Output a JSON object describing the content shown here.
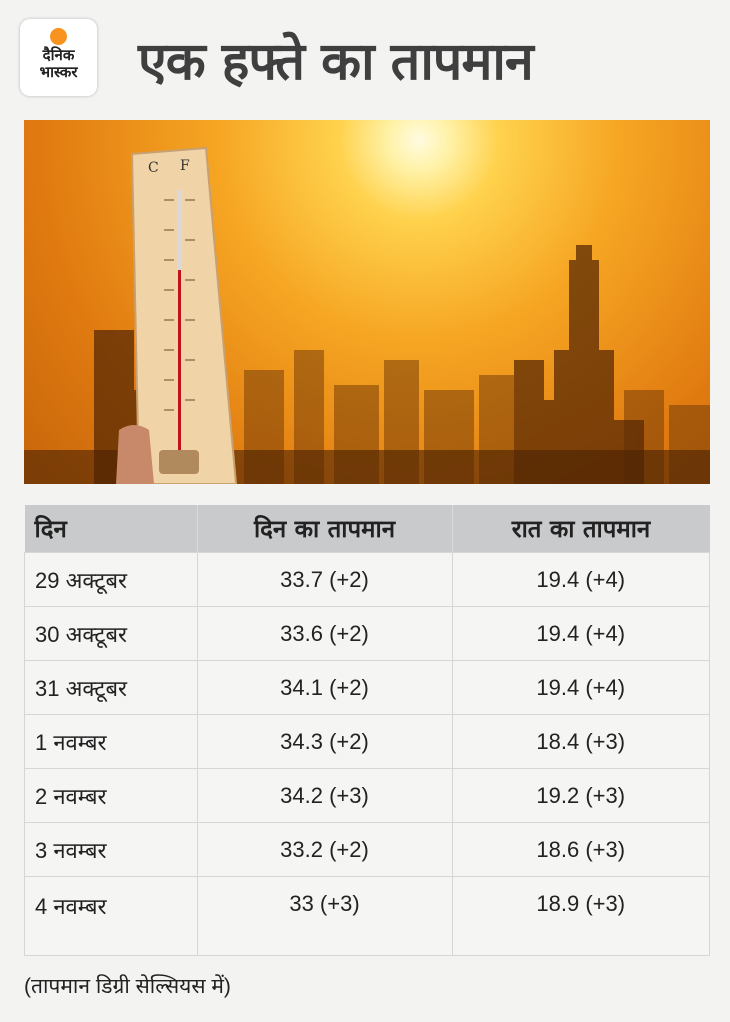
{
  "brand": {
    "logo_line1": "दैनिक",
    "logo_line2": "भास्कर",
    "accent": "#f7931e"
  },
  "title": "एक हफ्ते का तापमान",
  "thermometer": {
    "left_unit": "C",
    "right_unit": "F"
  },
  "table": {
    "headers": [
      "दिन",
      "दिन का तापमान",
      "रात का तापमान"
    ],
    "rows": [
      [
        "29 अक्टूबर",
        "33.7 (+2)",
        "19.4 (+4)"
      ],
      [
        "30 अक्टूबर",
        "33.6 (+2)",
        "19.4 (+4)"
      ],
      [
        "31 अक्टूबर",
        "34.1 (+2)",
        "19.4 (+4)"
      ],
      [
        "1 नवम्बर",
        "34.3 (+2)",
        "18.4 (+3)"
      ],
      [
        "2 नवम्बर",
        "34.2 (+3)",
        "19.2 (+3)"
      ],
      [
        "3 नवम्बर",
        "33.2 (+2)",
        "18.6 (+3)"
      ],
      [
        "4 नवम्बर",
        "33 (+3)",
        "18.9 (+3)"
      ]
    ]
  },
  "note": "(तापमान डिग्री सेल्सियस में)"
}
